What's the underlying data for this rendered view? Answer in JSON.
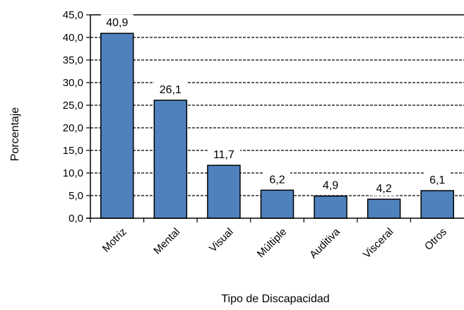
{
  "chart_data": {
    "type": "bar",
    "categories": [
      "Motriz",
      "Mental",
      "Visual",
      "Múltiple",
      "Auditiva",
      "Visceral",
      "Otros"
    ],
    "values": [
      40.9,
      26.1,
      11.7,
      6.2,
      4.9,
      4.2,
      6.1
    ],
    "value_labels": [
      "40,9",
      "26,1",
      "11,7",
      "6,2",
      "4,9",
      "4,2",
      "6,1"
    ],
    "y_ticks": [
      "0,0",
      "5,0",
      "10,0",
      "15,0",
      "20,0",
      "25,0",
      "30,0",
      "35,0",
      "40,0",
      "45,0"
    ],
    "xlabel": "Tipo de Discapacidad",
    "ylabel": "Porcentaje",
    "ylim": [
      0,
      45
    ],
    "ytick_step": 5,
    "grid": true,
    "bar_color": "#4f81bd",
    "bar_edge_color": "#000000",
    "legend": false
  }
}
